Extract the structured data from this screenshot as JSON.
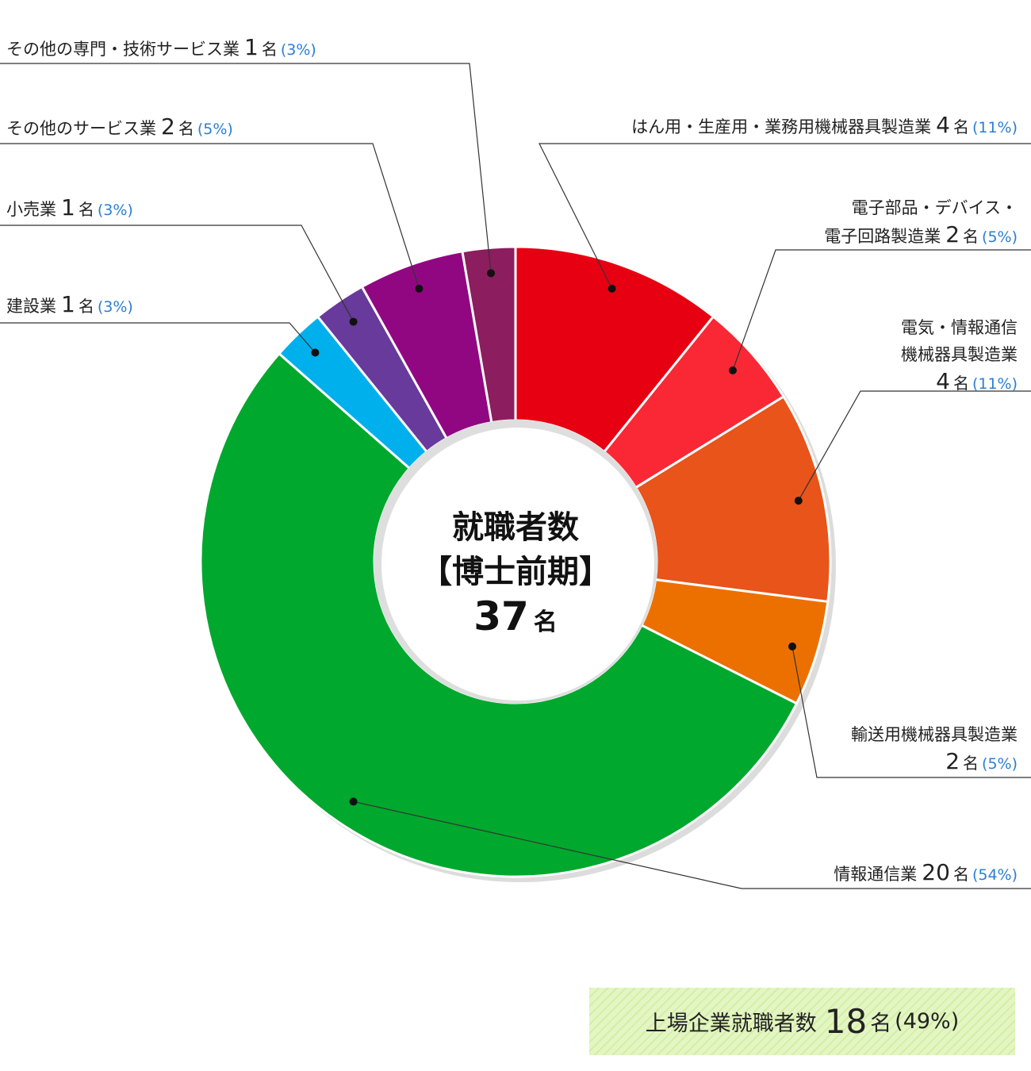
{
  "chart_data": {
    "type": "pie",
    "categories": [
      "はん用・生産用・業務用機械器具製造業",
      "電子部品・デバイス・\n電子回路製造業",
      "電気・情報通信\n機械器具製造業",
      "輸送用機械器具製造業",
      "情報通信業",
      "建設業",
      "小売業",
      "その他のサービス業",
      "その他の専門・技術サービス業"
    ],
    "values": [
      4,
      2,
      4,
      2,
      20,
      1,
      1,
      2,
      1
    ],
    "unit": "名",
    "percent_labels": [
      "(11%)",
      "(5%)",
      "(11%)",
      "(5%)",
      "(54%)",
      "(3%)",
      "(3%)",
      "(5%)",
      "(3%)"
    ],
    "colors": [
      "#e60012",
      "#fa2834",
      "#e8541a",
      "#ec7000",
      "#00a82d",
      "#00b0ec",
      "#673a9b",
      "#910782",
      "#8c1d5e"
    ],
    "center": {
      "title": "就職者数",
      "subtitle": "【博士前期】",
      "total": 37,
      "unit": "名"
    },
    "listed": {
      "label": "上場企業就職者数",
      "count": 18,
      "unit": "名",
      "percent_label": "(49%)"
    }
  }
}
